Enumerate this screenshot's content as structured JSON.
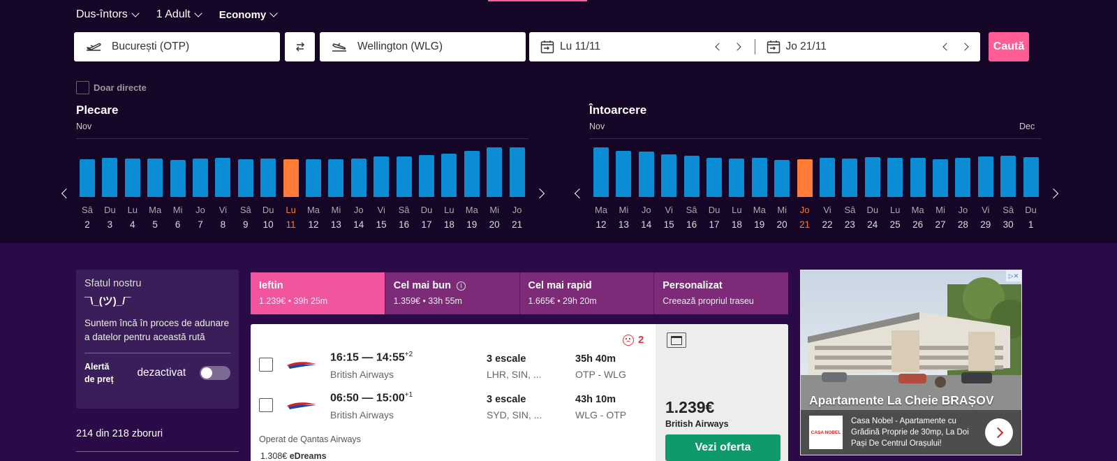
{
  "trip_options": {
    "trip_type": "Dus-întors",
    "passengers": "1 Adult",
    "cabin": "Economy"
  },
  "search": {
    "origin": "București (OTP)",
    "destination": "Wellington (WLG)",
    "depart_date": "Lu 11/11",
    "return_date": "Jo 21/11",
    "search_label": "Caută",
    "direct_only_label": "Doar directe"
  },
  "departure_calendar": {
    "title": "Plecare",
    "month_start": "Nov",
    "selected_index": 9,
    "days": [
      {
        "dow": "Sâ",
        "day": "2",
        "price_level": 0.72
      },
      {
        "dow": "Du",
        "day": "3",
        "price_level": 0.74
      },
      {
        "dow": "Lu",
        "day": "4",
        "price_level": 0.73
      },
      {
        "dow": "Ma",
        "day": "5",
        "price_level": 0.73
      },
      {
        "dow": "Mi",
        "day": "6",
        "price_level": 0.71
      },
      {
        "dow": "Jo",
        "day": "7",
        "price_level": 0.73
      },
      {
        "dow": "Vi",
        "day": "8",
        "price_level": 0.75
      },
      {
        "dow": "Sâ",
        "day": "9",
        "price_level": 0.72
      },
      {
        "dow": "Du",
        "day": "10",
        "price_level": 0.73
      },
      {
        "dow": "Lu",
        "day": "11",
        "price_level": 0.72
      },
      {
        "dow": "Ma",
        "day": "12",
        "price_level": 0.72
      },
      {
        "dow": "Mi",
        "day": "13",
        "price_level": 0.72
      },
      {
        "dow": "Jo",
        "day": "14",
        "price_level": 0.73
      },
      {
        "dow": "Vi",
        "day": "15",
        "price_level": 0.77
      },
      {
        "dow": "Sâ",
        "day": "16",
        "price_level": 0.77
      },
      {
        "dow": "Du",
        "day": "17",
        "price_level": 0.8
      },
      {
        "dow": "Lu",
        "day": "18",
        "price_level": 0.83
      },
      {
        "dow": "Ma",
        "day": "19",
        "price_level": 0.88
      },
      {
        "dow": "Mi",
        "day": "20",
        "price_level": 0.94
      },
      {
        "dow": "Jo",
        "day": "21",
        "price_level": 0.95
      }
    ]
  },
  "return_calendar": {
    "title": "Întoarcere",
    "month_start": "Nov",
    "month_end": "Dec",
    "selected_index": 9,
    "days": [
      {
        "dow": "Ma",
        "day": "12",
        "price_level": 0.95
      },
      {
        "dow": "Mi",
        "day": "13",
        "price_level": 0.88
      },
      {
        "dow": "Jo",
        "day": "14",
        "price_level": 0.86
      },
      {
        "dow": "Vi",
        "day": "15",
        "price_level": 0.81
      },
      {
        "dow": "Sâ",
        "day": "16",
        "price_level": 0.79
      },
      {
        "dow": "Du",
        "day": "17",
        "price_level": 0.75
      },
      {
        "dow": "Lu",
        "day": "18",
        "price_level": 0.73
      },
      {
        "dow": "Ma",
        "day": "19",
        "price_level": 0.74
      },
      {
        "dow": "Mi",
        "day": "20",
        "price_level": 0.71
      },
      {
        "dow": "Jo",
        "day": "21",
        "price_level": 0.72
      },
      {
        "dow": "Vi",
        "day": "22",
        "price_level": 0.74
      },
      {
        "dow": "Sâ",
        "day": "23",
        "price_level": 0.73
      },
      {
        "dow": "Du",
        "day": "24",
        "price_level": 0.76
      },
      {
        "dow": "Lu",
        "day": "25",
        "price_level": 0.74
      },
      {
        "dow": "Ma",
        "day": "26",
        "price_level": 0.74
      },
      {
        "dow": "Mi",
        "day": "27",
        "price_level": 0.72
      },
      {
        "dow": "Jo",
        "day": "28",
        "price_level": 0.74
      },
      {
        "dow": "Vi",
        "day": "29",
        "price_level": 0.77
      },
      {
        "dow": "Sâ",
        "day": "30",
        "price_level": 0.78
      },
      {
        "dow": "Du",
        "day": "1",
        "price_level": 0.76
      }
    ]
  },
  "advice": {
    "title": "Sfatul nostru",
    "shrug": "¯\\_(ツ)_/¯",
    "text": "Suntem încă în proces de adunare a datelor pentru această rută",
    "alert_label_line1": "Alertă",
    "alert_label_line2": "de preț",
    "alert_state": "dezactivat"
  },
  "flight_count": "214 din 218 zboruri",
  "sort_tabs": [
    {
      "label": "Ieftin",
      "sub": "1.239€ • 39h 25m",
      "active": true
    },
    {
      "label": "Cel mai bun",
      "sub": "1.359€ • 33h 55m",
      "info": "i"
    },
    {
      "label": "Cel mai rapid",
      "sub": "1.665€ • 29h 20m"
    },
    {
      "label": "Personalizat",
      "sub": "Creează propriul traseu"
    }
  ],
  "result": {
    "issues_count": "2",
    "legs": [
      {
        "times": "16:15 — 14:55",
        "day_offset": "+2",
        "airline": "British Airways",
        "stops": "3 escale",
        "via": "LHR, SIN, ...",
        "duration": "35h 40m",
        "route": "OTP - WLG"
      },
      {
        "times": "06:50 — 15:00",
        "day_offset": "+1",
        "airline": "British Airways",
        "stops": "3 escale",
        "via": "SYD, SIN, ...",
        "duration": "43h 10m",
        "route": "WLG - OTP"
      }
    ],
    "operated_by": "Operat de Qantas Airways",
    "alt_price": "1.308€",
    "alt_provider": "eDreams",
    "price": "1.239€",
    "price_airline": "British Airways",
    "cta": "Vezi oferta"
  },
  "ad": {
    "title": "Apartamente La Cheie BRAȘOV",
    "logo_text": "CASA NOBEL",
    "text": "Casa Nobel - Apartamente cu Grădină Proprie de 30mp, La Doi Pași De Centrul Orașului!"
  },
  "colors": {
    "background": "#150526",
    "accent": "#ff5b94",
    "bar": "#0b8dd6",
    "bar_selected": "#ff7b36",
    "cta": "#0e9a6c"
  }
}
